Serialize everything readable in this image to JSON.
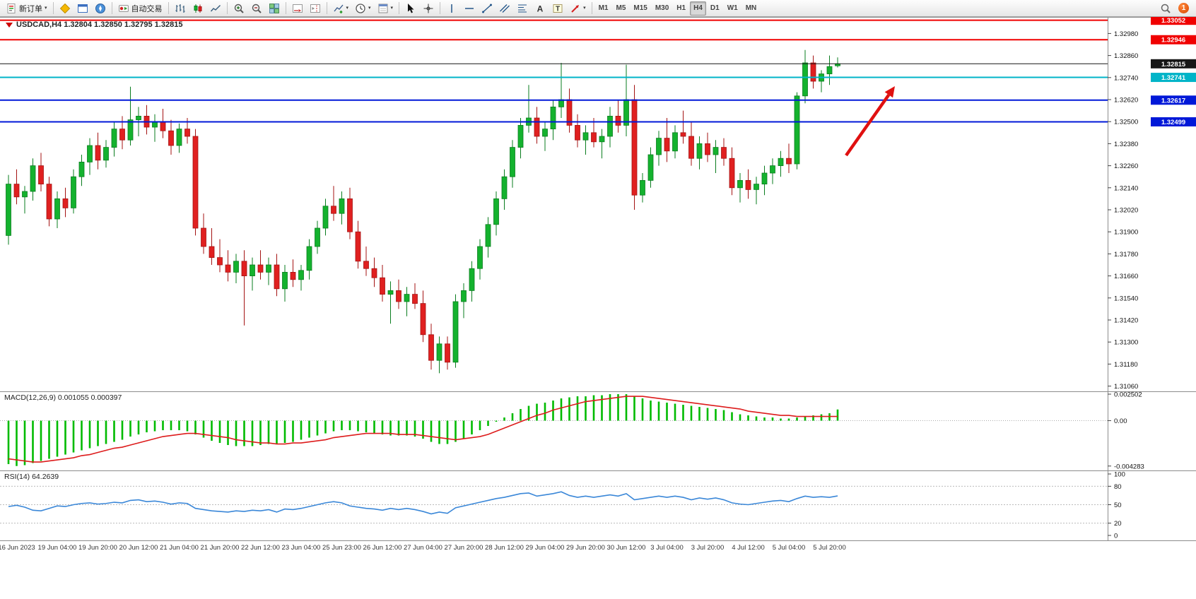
{
  "toolbar": {
    "new_order_label": "新订单",
    "autotrading_label": "自动交易",
    "timeframes": [
      "M1",
      "M5",
      "M15",
      "M30",
      "H1",
      "H4",
      "D1",
      "W1",
      "MN"
    ],
    "active_timeframe": "H4",
    "notification_count": "1"
  },
  "icons": [
    "new-order-icon",
    "market-watch-icon",
    "data-window-icon",
    "navigator-icon",
    "autotrading-icon",
    "bar-chart-icon",
    "candlestick-chart-icon",
    "line-chart-icon",
    "zoom-in-icon",
    "zoom-out-icon",
    "tile-windows-icon",
    "auto-scroll-icon",
    "chart-shift-icon",
    "indicators-icon",
    "periods-icon",
    "templates-icon",
    "cursor-icon",
    "crosshair-icon",
    "vertical-line-icon",
    "horizontal-line-icon",
    "trendline-icon",
    "channel-icon",
    "fibonacci-icon",
    "text-icon",
    "text-label-icon",
    "arrow-tool-icon",
    "chevron-down-icon",
    "search-icon",
    "notification-badge",
    "symbol-marker-icon"
  ],
  "chart": {
    "title": "USDCAD,H4 1.32804 1.32850 1.32795 1.32815",
    "axis_ticks": [
      "1.32980",
      "1.32860",
      "1.32740",
      "1.32620",
      "1.32500",
      "1.32380",
      "1.32260",
      "1.32140",
      "1.32020",
      "1.31900",
      "1.31780",
      "1.31660",
      "1.31540",
      "1.31420",
      "1.31300",
      "1.31180",
      "1.31060"
    ],
    "levels": [
      {
        "price": "1.33052",
        "color": "#f00000",
        "width": 2
      },
      {
        "price": "1.32946",
        "color": "#f00000",
        "width": 2
      },
      {
        "price": "1.32815",
        "color": "#161616",
        "width": 1
      },
      {
        "price": "1.32741",
        "color": "#00b4c8",
        "width": 2
      },
      {
        "price": "1.32617",
        "color": "#0018d8",
        "width": 2
      },
      {
        "price": "1.32499",
        "color": "#0018d8",
        "width": 2
      }
    ]
  },
  "colors": {
    "up": "#14b22e",
    "up_stroke": "#0a7d1f",
    "down": "#e02020",
    "down_stroke": "#a41313",
    "macd_hist": "#00bb00",
    "macd_signal": "#dd1c1c",
    "rsi_line": "#3a87d8"
  },
  "chart_data": {
    "type": "candlestick",
    "symbol": "USDCAD",
    "timeframe": "H4",
    "last_ohlc": {
      "open": 1.32804,
      "high": 1.3285,
      "low": 1.32795,
      "close": 1.32815
    },
    "price_range": {
      "top": 1.3307,
      "bottom": 1.3103
    },
    "candles": [
      [
        1.3188,
        1.3221,
        1.3183,
        1.3216
      ],
      [
        1.3216,
        1.3224,
        1.3205,
        1.3209
      ],
      [
        1.3209,
        1.3215,
        1.32,
        1.3212
      ],
      [
        1.3212,
        1.323,
        1.3207,
        1.3226
      ],
      [
        1.3226,
        1.3233,
        1.3212,
        1.3216
      ],
      [
        1.3216,
        1.322,
        1.3193,
        1.3197
      ],
      [
        1.3197,
        1.3212,
        1.3192,
        1.3208
      ],
      [
        1.3208,
        1.3214,
        1.3198,
        1.3203
      ],
      [
        1.3203,
        1.3224,
        1.32,
        1.322
      ],
      [
        1.322,
        1.3232,
        1.3215,
        1.3228
      ],
      [
        1.3228,
        1.3241,
        1.3221,
        1.3237
      ],
      [
        1.3237,
        1.3244,
        1.3224,
        1.3229
      ],
      [
        1.3229,
        1.324,
        1.3225,
        1.3236
      ],
      [
        1.3236,
        1.325,
        1.3231,
        1.3246
      ],
      [
        1.3246,
        1.3253,
        1.3235,
        1.324
      ],
      [
        1.324,
        1.3269,
        1.3237,
        1.3251
      ],
      [
        1.3251,
        1.3258,
        1.3242,
        1.3253
      ],
      [
        1.3253,
        1.3259,
        1.3243,
        1.3247
      ],
      [
        1.3247,
        1.3254,
        1.3239,
        1.325
      ],
      [
        1.325,
        1.3257,
        1.3241,
        1.3245
      ],
      [
        1.3245,
        1.3251,
        1.3232,
        1.3237
      ],
      [
        1.3237,
        1.3249,
        1.3233,
        1.3246
      ],
      [
        1.3246,
        1.3252,
        1.3238,
        1.3242
      ],
      [
        1.3242,
        1.3246,
        1.3188,
        1.3192
      ],
      [
        1.3192,
        1.32,
        1.3178,
        1.3182
      ],
      [
        1.3182,
        1.3192,
        1.3172,
        1.3176
      ],
      [
        1.3176,
        1.3186,
        1.3168,
        1.3172
      ],
      [
        1.3172,
        1.318,
        1.3163,
        1.3168
      ],
      [
        1.3168,
        1.3178,
        1.3162,
        1.3174
      ],
      [
        1.3174,
        1.318,
        1.3139,
        1.3166
      ],
      [
        1.3166,
        1.3176,
        1.3158,
        1.3172
      ],
      [
        1.3172,
        1.318,
        1.3164,
        1.3168
      ],
      [
        1.3168,
        1.3176,
        1.3161,
        1.3172
      ],
      [
        1.3172,
        1.3178,
        1.3155,
        1.3159
      ],
      [
        1.3159,
        1.3172,
        1.3152,
        1.3168
      ],
      [
        1.3168,
        1.3175,
        1.316,
        1.3164
      ],
      [
        1.3164,
        1.3172,
        1.3158,
        1.3169
      ],
      [
        1.3169,
        1.3186,
        1.3164,
        1.3182
      ],
      [
        1.3182,
        1.3196,
        1.3178,
        1.3192
      ],
      [
        1.3192,
        1.3208,
        1.3188,
        1.3204
      ],
      [
        1.3204,
        1.3215,
        1.3196,
        1.32
      ],
      [
        1.32,
        1.3212,
        1.3194,
        1.3208
      ],
      [
        1.3208,
        1.3214,
        1.3186,
        1.319
      ],
      [
        1.319,
        1.3196,
        1.317,
        1.3174
      ],
      [
        1.3174,
        1.3182,
        1.3166,
        1.317
      ],
      [
        1.317,
        1.3176,
        1.316,
        1.3165
      ],
      [
        1.3165,
        1.3172,
        1.3152,
        1.3156
      ],
      [
        1.3156,
        1.3163,
        1.314,
        1.3158
      ],
      [
        1.3158,
        1.3164,
        1.3148,
        1.3152
      ],
      [
        1.3152,
        1.316,
        1.3144,
        1.3156
      ],
      [
        1.3156,
        1.3162,
        1.3148,
        1.3151
      ],
      [
        1.3151,
        1.3158,
        1.313,
        1.3134
      ],
      [
        1.3134,
        1.314,
        1.3115,
        1.312
      ],
      [
        1.312,
        1.3133,
        1.3113,
        1.3129
      ],
      [
        1.3129,
        1.3133,
        1.3115,
        1.3119
      ],
      [
        1.3119,
        1.3156,
        1.3116,
        1.3152
      ],
      [
        1.3152,
        1.3162,
        1.3143,
        1.3158
      ],
      [
        1.3158,
        1.3174,
        1.3152,
        1.317
      ],
      [
        1.317,
        1.3186,
        1.3164,
        1.3182
      ],
      [
        1.3182,
        1.3198,
        1.3176,
        1.3194
      ],
      [
        1.3194,
        1.3212,
        1.3188,
        1.3208
      ],
      [
        1.3208,
        1.3224,
        1.3202,
        1.322
      ],
      [
        1.322,
        1.324,
        1.3214,
        1.3236
      ],
      [
        1.3236,
        1.3252,
        1.323,
        1.3248
      ],
      [
        1.3248,
        1.327,
        1.3244,
        1.3252
      ],
      [
        1.3252,
        1.3258,
        1.3238,
        1.3242
      ],
      [
        1.3242,
        1.325,
        1.3234,
        1.3246
      ],
      [
        1.3246,
        1.3262,
        1.324,
        1.3258
      ],
      [
        1.3258,
        1.3282,
        1.3252,
        1.3262
      ],
      [
        1.3262,
        1.3268,
        1.3244,
        1.3248
      ],
      [
        1.3248,
        1.3254,
        1.3236,
        1.324
      ],
      [
        1.324,
        1.3248,
        1.3232,
        1.3244
      ],
      [
        1.3244,
        1.3252,
        1.3236,
        1.3239
      ],
      [
        1.3239,
        1.3246,
        1.323,
        1.3242
      ],
      [
        1.3242,
        1.3258,
        1.3236,
        1.3253
      ],
      [
        1.3253,
        1.3262,
        1.3244,
        1.3248
      ],
      [
        1.3248,
        1.3281,
        1.3242,
        1.3262
      ],
      [
        1.3262,
        1.327,
        1.3202,
        1.321
      ],
      [
        1.321,
        1.3222,
        1.3206,
        1.3218
      ],
      [
        1.3218,
        1.3236,
        1.3214,
        1.3232
      ],
      [
        1.3232,
        1.3245,
        1.3226,
        1.3241
      ],
      [
        1.3241,
        1.3252,
        1.3228,
        1.3234
      ],
      [
        1.3234,
        1.3248,
        1.323,
        1.3244
      ],
      [
        1.3244,
        1.3256,
        1.3238,
        1.3242
      ],
      [
        1.3242,
        1.325,
        1.3226,
        1.323
      ],
      [
        1.323,
        1.3242,
        1.3224,
        1.3238
      ],
      [
        1.3238,
        1.3244,
        1.3228,
        1.3232
      ],
      [
        1.3232,
        1.324,
        1.3222,
        1.3236
      ],
      [
        1.3236,
        1.3241,
        1.3226,
        1.323
      ],
      [
        1.323,
        1.3236,
        1.321,
        1.3214
      ],
      [
        1.3214,
        1.3222,
        1.3206,
        1.3218
      ],
      [
        1.3218,
        1.3224,
        1.3208,
        1.3213
      ],
      [
        1.3213,
        1.322,
        1.3205,
        1.3216
      ],
      [
        1.3216,
        1.3226,
        1.321,
        1.3222
      ],
      [
        1.3222,
        1.323,
        1.3216,
        1.3226
      ],
      [
        1.3226,
        1.3234,
        1.322,
        1.323
      ],
      [
        1.323,
        1.3238,
        1.3222,
        1.3227
      ],
      [
        1.3227,
        1.3266,
        1.3224,
        1.3264
      ],
      [
        1.3264,
        1.3289,
        1.326,
        1.3282
      ],
      [
        1.3282,
        1.3286,
        1.3268,
        1.3272
      ],
      [
        1.3272,
        1.3278,
        1.3266,
        1.3276
      ],
      [
        1.3276,
        1.3286,
        1.327,
        1.328
      ],
      [
        1.32804,
        1.3285,
        1.32795,
        1.32815
      ]
    ],
    "time_labels": [
      {
        "i": 1,
        "t": "16 Jun 2023"
      },
      {
        "i": 6,
        "t": "19 Jun 04:00"
      },
      {
        "i": 11,
        "t": "19 Jun 20:00"
      },
      {
        "i": 16,
        "t": "20 Jun 12:00"
      },
      {
        "i": 21,
        "t": "21 Jun 04:00"
      },
      {
        "i": 26,
        "t": "21 Jun 20:00"
      },
      {
        "i": 31,
        "t": "22 Jun 12:00"
      },
      {
        "i": 36,
        "t": "23 Jun 04:00"
      },
      {
        "i": 41,
        "t": "25 Jun 23:00"
      },
      {
        "i": 46,
        "t": "26 Jun 12:00"
      },
      {
        "i": 51,
        "t": "27 Jun 04:00"
      },
      {
        "i": 56,
        "t": "27 Jun 20:00"
      },
      {
        "i": 61,
        "t": "28 Jun 12:00"
      },
      {
        "i": 66,
        "t": "29 Jun 04:00"
      },
      {
        "i": 71,
        "t": "29 Jun 20:00"
      },
      {
        "i": 76,
        "t": "30 Jun 12:00"
      },
      {
        "i": 81,
        "t": "3 Jul 04:00"
      },
      {
        "i": 86,
        "t": "3 Jul 20:00"
      },
      {
        "i": 91,
        "t": "4 Jul 12:00"
      },
      {
        "i": 96,
        "t": "5 Jul 04:00"
      },
      {
        "i": 101,
        "t": "5 Jul 20:00"
      }
    ],
    "indicators": {
      "macd": {
        "label": "MACD(12,26,9)",
        "value_main": "0.001055",
        "value_signal": "0.000397",
        "label_full": "MACD(12,26,9) 0.001055 0.000397",
        "scale_labels": [
          "0.002502",
          "0.00",
          "-0.004283"
        ],
        "scale_max": 0.002502,
        "scale_min": -0.004283,
        "histogram": [
          -0.0041,
          -0.00428,
          -0.0042,
          -0.004,
          -0.0038,
          -0.0036,
          -0.0034,
          -0.0032,
          -0.003,
          -0.0028,
          -0.0026,
          -0.0024,
          -0.0022,
          -0.002,
          -0.0018,
          -0.0015,
          -0.0013,
          -0.0011,
          -0.001,
          -0.0009,
          -0.0009,
          -0.0009,
          -0.001,
          -0.0013,
          -0.0016,
          -0.0019,
          -0.0021,
          -0.0023,
          -0.0024,
          -0.0024,
          -0.0024,
          -0.0023,
          -0.0022,
          -0.0022,
          -0.0021,
          -0.002,
          -0.0018,
          -0.0016,
          -0.0014,
          -0.0012,
          -0.001,
          -0.0009,
          -0.0009,
          -0.001,
          -0.0011,
          -0.0012,
          -0.0013,
          -0.0014,
          -0.0014,
          -0.0014,
          -0.0015,
          -0.0017,
          -0.002,
          -0.0022,
          -0.0022,
          -0.002,
          -0.0017,
          -0.0013,
          -0.0009,
          -0.0005,
          -0.0001,
          0.0003,
          0.0007,
          0.0011,
          0.0014,
          0.0016,
          0.0017,
          0.0019,
          0.0021,
          0.0022,
          0.0023,
          0.0023,
          0.0024,
          0.0024,
          0.0025,
          0.0025,
          0.0025,
          0.0023,
          0.0021,
          0.0019,
          0.0018,
          0.0017,
          0.0016,
          0.0015,
          0.0014,
          0.0013,
          0.0012,
          0.0011,
          0.001,
          0.0008,
          0.0006,
          0.0005,
          0.0004,
          0.0003,
          0.0003,
          0.0002,
          0.0002,
          0.0003,
          0.0004,
          0.0005,
          0.0006,
          0.0007,
          0.001055
        ],
        "signal": [
          -0.0036,
          -0.0037,
          -0.0038,
          -0.0039,
          -0.0039,
          -0.0038,
          -0.0037,
          -0.0036,
          -0.0035,
          -0.0033,
          -0.0032,
          -0.003,
          -0.0028,
          -0.0026,
          -0.0025,
          -0.0023,
          -0.0021,
          -0.0019,
          -0.0017,
          -0.0015,
          -0.0014,
          -0.0013,
          -0.0012,
          -0.0012,
          -0.0013,
          -0.0014,
          -0.0015,
          -0.0016,
          -0.0018,
          -0.0019,
          -0.002,
          -0.0021,
          -0.0021,
          -0.0022,
          -0.0022,
          -0.0021,
          -0.0021,
          -0.002,
          -0.0019,
          -0.0018,
          -0.0016,
          -0.0015,
          -0.0014,
          -0.0013,
          -0.0012,
          -0.0012,
          -0.0012,
          -0.0012,
          -0.0013,
          -0.0013,
          -0.0013,
          -0.0014,
          -0.0015,
          -0.0016,
          -0.0017,
          -0.0018,
          -0.0017,
          -0.0016,
          -0.0015,
          -0.0013,
          -0.001,
          -0.0007,
          -0.0004,
          -0.0001,
          0.0002,
          0.0005,
          0.0007,
          0.001,
          0.0012,
          0.0014,
          0.0016,
          0.0018,
          0.0019,
          0.002,
          0.0021,
          0.0022,
          0.0023,
          0.0023,
          0.0023,
          0.0022,
          0.0021,
          0.002,
          0.0019,
          0.0018,
          0.0017,
          0.0016,
          0.0015,
          0.0014,
          0.0013,
          0.0012,
          0.0011,
          0.0009,
          0.0008,
          0.0007,
          0.0006,
          0.0005,
          0.0005,
          0.0004,
          0.0004,
          0.0004,
          0.0004,
          0.0004,
          0.000397
        ]
      },
      "rsi": {
        "label": "RSI(14)",
        "value": "64.2639",
        "label_full": "RSI(14) 64.2639",
        "scale_labels": [
          "100",
          "80",
          "50",
          "20",
          "0"
        ],
        "levels": [
          80,
          50,
          20
        ],
        "series": [
          47,
          49,
          46,
          41,
          40,
          44,
          48,
          47,
          50,
          52,
          53,
          51,
          52,
          54,
          53,
          57,
          58,
          55,
          56,
          54,
          51,
          53,
          52,
          44,
          42,
          40,
          39,
          38,
          40,
          39,
          41,
          40,
          42,
          38,
          43,
          42,
          44,
          47,
          50,
          53,
          55,
          53,
          48,
          46,
          44,
          43,
          41,
          44,
          42,
          44,
          42,
          39,
          35,
          38,
          36,
          45,
          48,
          51,
          54,
          57,
          60,
          62,
          65,
          68,
          69,
          64,
          66,
          68,
          71,
          65,
          62,
          64,
          62,
          64,
          66,
          64,
          68,
          58,
          60,
          62,
          64,
          62,
          64,
          62,
          58,
          61,
          59,
          61,
          58,
          53,
          51,
          50,
          52,
          54,
          56,
          57,
          55,
          60,
          64,
          62,
          63,
          62,
          64.26
        ]
      }
    },
    "annotation_arrow": {
      "from": [
        1197,
        196
      ],
      "to": [
        1266,
        98
      ],
      "color": "#e01010"
    }
  }
}
